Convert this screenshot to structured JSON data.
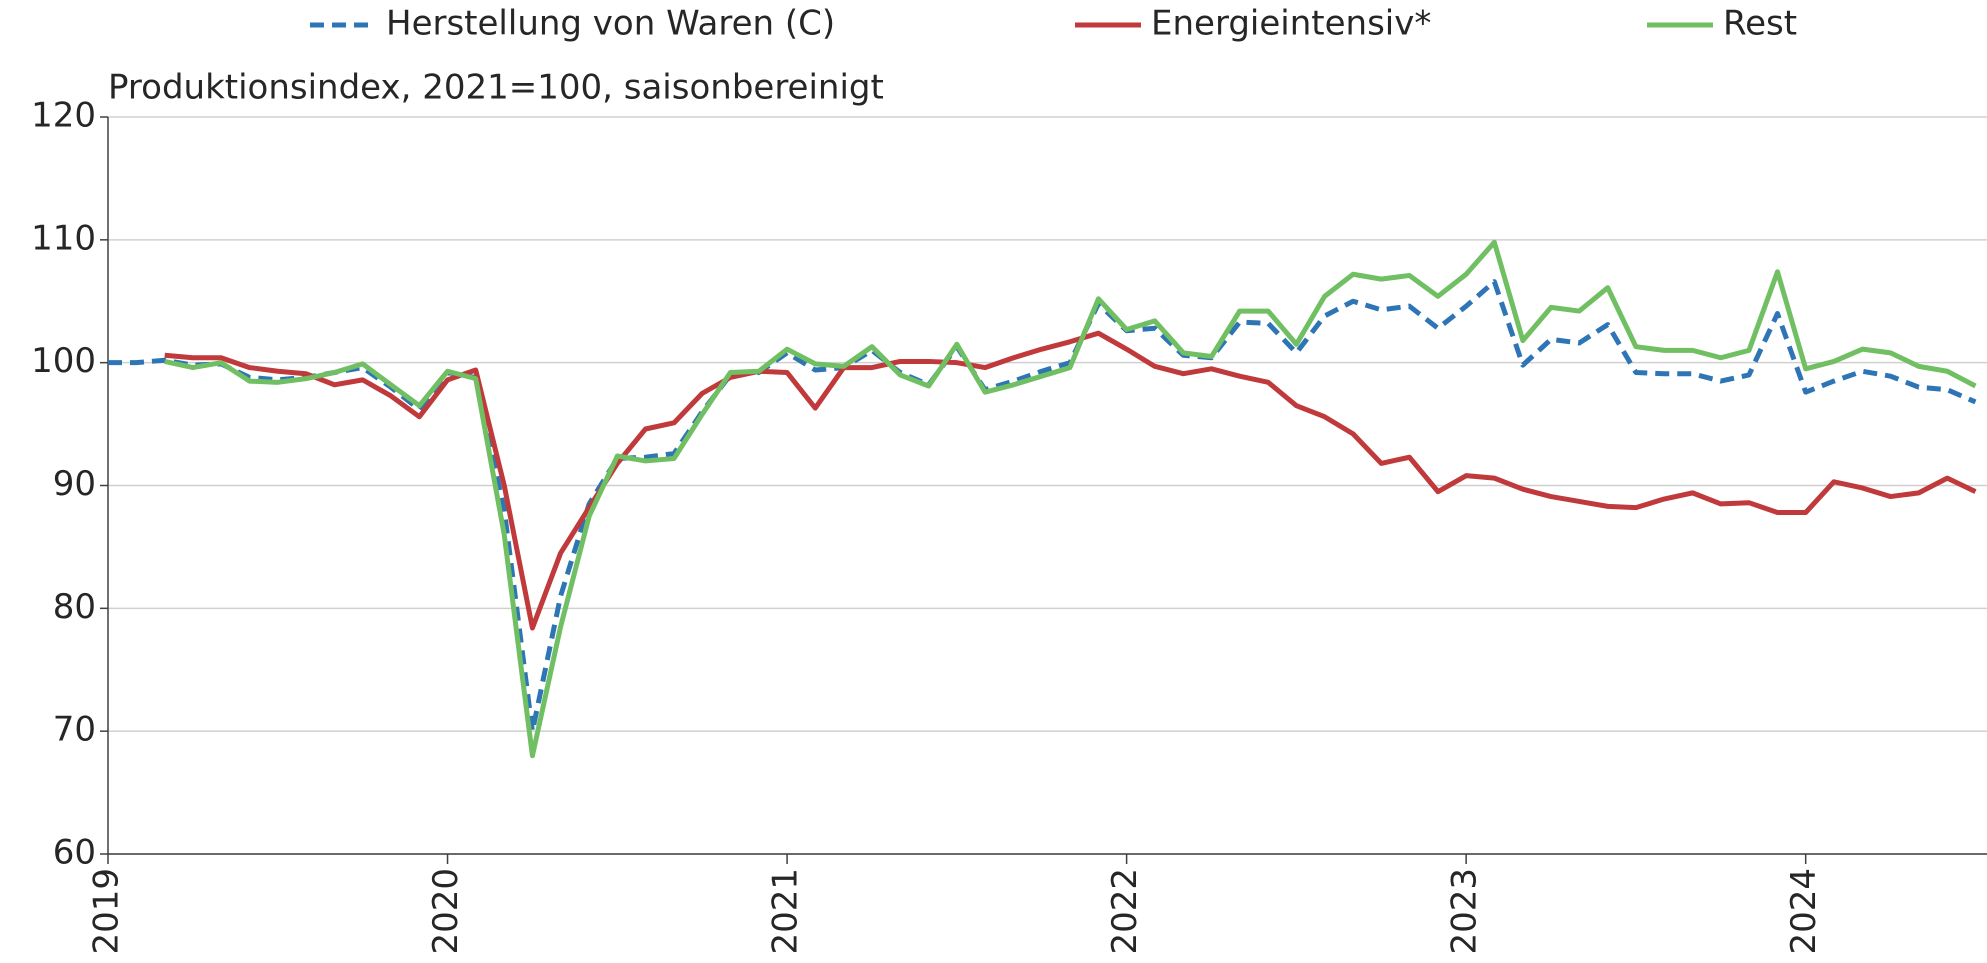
{
  "chart_data": {
    "type": "line",
    "title": "Produktionsindex, 2021=100, saisonbereinigt",
    "x": [
      2019,
      2019.083,
      2019.167,
      2019.25,
      2019.333,
      2019.417,
      2019.5,
      2019.583,
      2019.667,
      2019.75,
      2019.833,
      2019.917,
      2020,
      2020.083,
      2020.167,
      2020.25,
      2020.333,
      2020.417,
      2020.5,
      2020.583,
      2020.667,
      2020.75,
      2020.833,
      2020.917,
      2021,
      2021.083,
      2021.167,
      2021.25,
      2021.333,
      2021.417,
      2021.5,
      2021.583,
      2021.667,
      2021.75,
      2021.833,
      2021.917,
      2022,
      2022.083,
      2022.167,
      2022.25,
      2022.333,
      2022.417,
      2022.5,
      2022.583,
      2022.667,
      2022.75,
      2022.833,
      2022.917,
      2023,
      2023.083,
      2023.167,
      2023.25,
      2023.333,
      2023.417,
      2023.5,
      2023.583,
      2023.667,
      2023.75,
      2023.833,
      2023.917,
      2024,
      2024.083,
      2024.167,
      2024.25,
      2024.333,
      2024.417,
      2024.5
    ],
    "series": [
      {
        "name": "Herstellung von Waren (C)",
        "color": "#2e75b6",
        "style": "dashed",
        "values": [
          100,
          100,
          100.2,
          99.8,
          99.9,
          98.8,
          98.6,
          98.8,
          99.2,
          99.6,
          98,
          96.2,
          99.2,
          98.8,
          88,
          70,
          81,
          88.5,
          92.2,
          92.3,
          92.6,
          96,
          99,
          99.2,
          100.8,
          99.4,
          99.6,
          101,
          99.2,
          98.2,
          101.3,
          97.8,
          98.5,
          99.3,
          100,
          104.8,
          102.6,
          102.8,
          100.6,
          100.4,
          103.3,
          103.2,
          100.8,
          103.8,
          105,
          104.3,
          104.6,
          102.8,
          104.6,
          106.6,
          99.8,
          101.9,
          101.6,
          103.1,
          99.2,
          99.1,
          99.1,
          98.5,
          99,
          104,
          97.6,
          98.5,
          99.3,
          98.9,
          98,
          97.8,
          96.8
        ]
      },
      {
        "name": "Energieintensiv*",
        "color": "#c0393b",
        "style": "solid",
        "values": [
          null,
          null,
          100.6,
          100.4,
          100.4,
          99.6,
          99.3,
          99.1,
          98.2,
          98.6,
          97.3,
          95.6,
          98.6,
          99.4,
          90,
          78.4,
          84.5,
          88.2,
          91.8,
          94.6,
          95.1,
          97.5,
          98.8,
          99.3,
          99.2,
          96.3,
          99.6,
          99.6,
          100.1,
          100.1,
          100,
          99.6,
          100.4,
          101.1,
          101.7,
          102.4,
          101.1,
          99.7,
          99.1,
          99.5,
          98.9,
          98.4,
          96.5,
          95.6,
          94.2,
          91.8,
          92.3,
          89.5,
          90.8,
          90.6,
          89.7,
          89.1,
          88.7,
          88.3,
          88.2,
          88.9,
          89.4,
          88.5,
          88.6,
          87.8,
          87.8,
          90.3,
          89.8,
          89.1,
          89.4,
          90.6,
          89.5
        ]
      },
      {
        "name": "Rest",
        "color": "#70bf63",
        "style": "solid",
        "values": [
          null,
          null,
          100.1,
          99.6,
          100,
          98.5,
          98.4,
          98.7,
          99.2,
          99.9,
          98.2,
          96.5,
          99.3,
          98.7,
          86,
          68,
          78.5,
          87.5,
          92.4,
          92,
          92.2,
          95.8,
          99.2,
          99.3,
          101.1,
          99.9,
          99.7,
          101.3,
          99,
          98.1,
          101.5,
          97.6,
          98.2,
          98.9,
          99.6,
          105.2,
          102.7,
          103.4,
          100.8,
          100.5,
          104.2,
          104.2,
          101.5,
          105.4,
          107.2,
          106.8,
          107.1,
          105.4,
          107.2,
          109.8,
          101.8,
          104.5,
          104.2,
          106.1,
          101.3,
          101,
          101,
          100.4,
          101,
          107.4,
          99.5,
          100.1,
          101.1,
          100.8,
          99.7,
          99.3,
          98.1
        ]
      }
    ],
    "xlim": [
      2019,
      2024.534
    ],
    "xticks": [
      2019,
      2020,
      2021,
      2022,
      2023,
      2024
    ],
    "ylim": [
      60,
      120
    ],
    "yticks": [
      60,
      70,
      80,
      90,
      100,
      110,
      120
    ],
    "grid": true,
    "legend": "top"
  }
}
